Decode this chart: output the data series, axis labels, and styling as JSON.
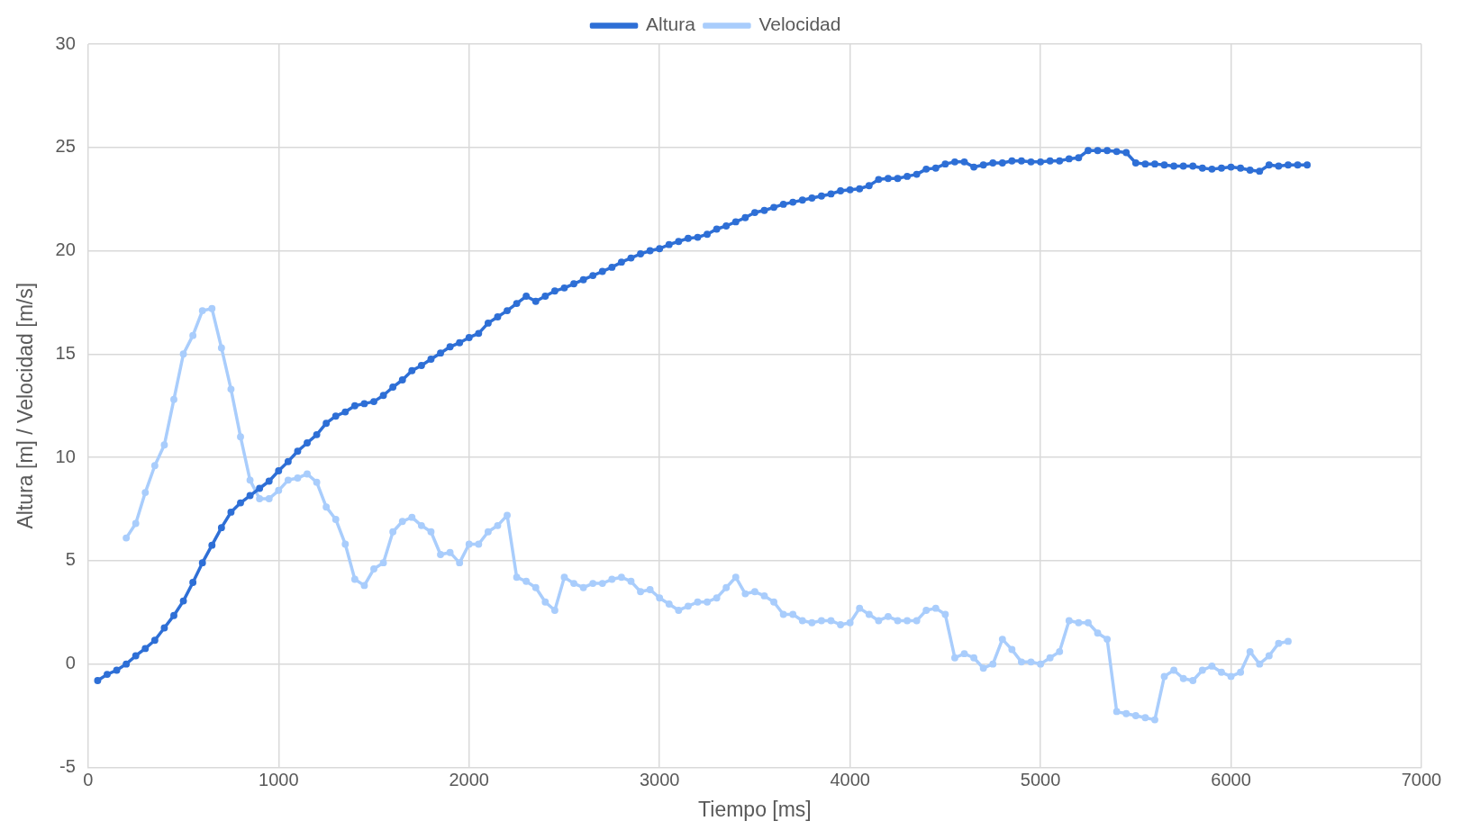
{
  "chart_data": {
    "type": "line",
    "xlabel": "Tiempo [ms]",
    "ylabel": "Altura [m] / Velocidad [m/s]",
    "xlim": [
      0,
      7000
    ],
    "xticks": [
      0,
      1000,
      2000,
      3000,
      4000,
      5000,
      6000,
      7000
    ],
    "ylim": [
      -5,
      30
    ],
    "yticks": [
      -5,
      0,
      5,
      10,
      15,
      20,
      25,
      30
    ],
    "grid": true,
    "legend": "top",
    "marker": "circle",
    "line_style": "solid",
    "series": [
      {
        "name": "Altura",
        "color": "#2e6fd6",
        "x": [
          50,
          100,
          150,
          200,
          250,
          300,
          350,
          400,
          450,
          500,
          550,
          600,
          650,
          700,
          750,
          800,
          850,
          900,
          950,
          1000,
          1050,
          1100,
          1150,
          1200,
          1250,
          1300,
          1350,
          1400,
          1450,
          1500,
          1550,
          1600,
          1650,
          1700,
          1750,
          1800,
          1850,
          1900,
          1950,
          2000,
          2050,
          2100,
          2150,
          2200,
          2250,
          2300,
          2350,
          2400,
          2450,
          2500,
          2550,
          2600,
          2650,
          2700,
          2750,
          2800,
          2850,
          2900,
          2950,
          3000,
          3050,
          3100,
          3150,
          3200,
          3250,
          3300,
          3350,
          3400,
          3450,
          3500,
          3550,
          3600,
          3650,
          3700,
          3750,
          3800,
          3850,
          3900,
          3950,
          4000,
          4050,
          4100,
          4150,
          4200,
          4250,
          4300,
          4350,
          4400,
          4450,
          4500,
          4550,
          4600,
          4650,
          4700,
          4750,
          4800,
          4850,
          4900,
          4950,
          5000,
          5050,
          5100,
          5150,
          5200,
          5250,
          5300,
          5350,
          5400,
          5450,
          5500,
          5550,
          5600,
          5650,
          5700,
          5750,
          5800,
          5850,
          5900,
          5950,
          6000,
          6050,
          6100,
          6150,
          6200,
          6250,
          6300,
          6350,
          6400
        ],
        "values": [
          -0.8,
          -0.5,
          -0.3,
          0.0,
          0.4,
          0.75,
          1.15,
          1.75,
          2.35,
          3.05,
          3.95,
          4.9,
          5.75,
          6.6,
          7.35,
          7.8,
          8.15,
          8.5,
          8.85,
          9.35,
          9.8,
          10.3,
          10.7,
          11.1,
          11.65,
          12.0,
          12.2,
          12.5,
          12.6,
          12.7,
          13.0,
          13.4,
          13.75,
          14.2,
          14.45,
          14.75,
          15.05,
          15.35,
          15.55,
          15.8,
          16.0,
          16.5,
          16.8,
          17.1,
          17.45,
          17.8,
          17.55,
          17.8,
          18.05,
          18.2,
          18.4,
          18.6,
          18.8,
          19.0,
          19.2,
          19.45,
          19.65,
          19.85,
          20.0,
          20.1,
          20.3,
          20.45,
          20.6,
          20.65,
          20.8,
          21.05,
          21.2,
          21.4,
          21.6,
          21.85,
          21.95,
          22.1,
          22.25,
          22.35,
          22.45,
          22.55,
          22.65,
          22.75,
          22.9,
          22.95,
          23.0,
          23.15,
          23.45,
          23.5,
          23.5,
          23.6,
          23.7,
          23.95,
          24.0,
          24.2,
          24.3,
          24.3,
          24.05,
          24.15,
          24.25,
          24.25,
          24.35,
          24.35,
          24.3,
          24.3,
          24.35,
          24.35,
          24.45,
          24.5,
          24.85,
          24.85,
          24.85,
          24.8,
          24.75,
          24.25,
          24.2,
          24.2,
          24.15,
          24.1,
          24.1,
          24.1,
          24.0,
          23.95,
          24.0,
          24.05,
          24.0,
          23.9,
          23.85,
          24.15,
          24.1,
          24.15,
          24.15,
          24.15
        ]
      },
      {
        "name": "Velocidad",
        "color": "#a9cdfc",
        "x": [
          200,
          250,
          300,
          350,
          400,
          450,
          500,
          550,
          600,
          650,
          700,
          750,
          800,
          850,
          900,
          950,
          1000,
          1050,
          1100,
          1150,
          1200,
          1250,
          1300,
          1350,
          1400,
          1450,
          1500,
          1550,
          1600,
          1650,
          1700,
          1750,
          1800,
          1850,
          1900,
          1950,
          2000,
          2050,
          2100,
          2150,
          2200,
          2250,
          2300,
          2350,
          2400,
          2450,
          2500,
          2550,
          2600,
          2650,
          2700,
          2750,
          2800,
          2850,
          2900,
          2950,
          3000,
          3050,
          3100,
          3150,
          3200,
          3250,
          3300,
          3350,
          3400,
          3450,
          3500,
          3550,
          3600,
          3650,
          3700,
          3750,
          3800,
          3850,
          3900,
          3950,
          4000,
          4050,
          4100,
          4150,
          4200,
          4250,
          4300,
          4350,
          4400,
          4450,
          4500,
          4550,
          4600,
          4650,
          4700,
          4750,
          4800,
          4850,
          4900,
          4950,
          5000,
          5050,
          5100,
          5150,
          5200,
          5250,
          5300,
          5350,
          5400,
          5450,
          5500,
          5550,
          5600,
          5650,
          5700,
          5750,
          5800,
          5850,
          5900,
          5950,
          6000,
          6050,
          6100,
          6150,
          6200,
          6250,
          6300
        ],
        "values": [
          6.1,
          6.8,
          8.3,
          9.6,
          10.6,
          12.8,
          15.0,
          15.9,
          17.1,
          17.2,
          15.3,
          13.3,
          11.0,
          8.9,
          8.0,
          8.0,
          8.4,
          8.9,
          9.0,
          9.2,
          8.8,
          7.6,
          7.0,
          5.8,
          4.1,
          3.8,
          4.6,
          4.9,
          6.4,
          6.9,
          7.1,
          6.7,
          6.4,
          5.3,
          5.4,
          4.9,
          5.8,
          5.8,
          6.4,
          6.7,
          7.2,
          4.2,
          4.0,
          3.7,
          3.0,
          2.6,
          4.2,
          3.9,
          3.7,
          3.9,
          3.9,
          4.1,
          4.2,
          4.0,
          3.5,
          3.6,
          3.2,
          2.9,
          2.6,
          2.8,
          3.0,
          3.0,
          3.2,
          3.7,
          4.2,
          3.4,
          3.5,
          3.3,
          3.0,
          2.4,
          2.4,
          2.1,
          2.0,
          2.1,
          2.1,
          1.9,
          2.0,
          2.7,
          2.4,
          2.1,
          2.3,
          2.1,
          2.1,
          2.1,
          2.6,
          2.7,
          2.4,
          0.3,
          0.5,
          0.3,
          -0.2,
          0.0,
          1.2,
          0.7,
          0.1,
          0.1,
          0.0,
          0.3,
          0.6,
          2.1,
          2.0,
          2.0,
          1.5,
          1.2,
          -2.3,
          -2.4,
          -2.5,
          -2.6,
          -2.7,
          -0.6,
          -0.3,
          -0.7,
          -0.8,
          -0.3,
          -0.1,
          -0.4,
          -0.6,
          -0.4,
          0.6,
          0.0,
          0.4,
          1.0,
          1.1
        ]
      }
    ]
  }
}
